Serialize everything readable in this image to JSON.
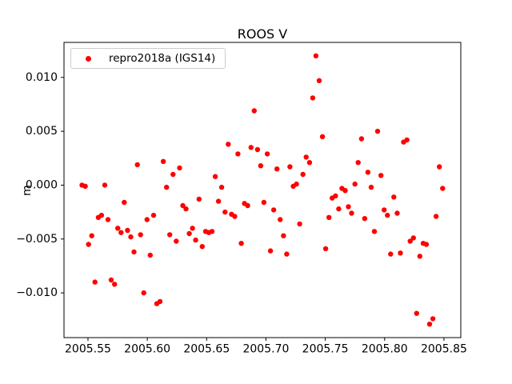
{
  "chart_data": {
    "type": "scatter",
    "title": "ROOS V",
    "xlabel": "",
    "ylabel": "m",
    "grid": false,
    "xlim": [
      2005.5298,
      2005.8642
    ],
    "ylim": [
      -0.01415,
      0.01325
    ],
    "xticks": {
      "values": [
        2005.55,
        2005.6,
        2005.65,
        2005.7,
        2005.75,
        2005.8,
        2005.85
      ],
      "labels": [
        "2005.55",
        "2005.60",
        "2005.65",
        "2005.70",
        "2005.75",
        "2005.80",
        "2005.85"
      ]
    },
    "yticks": {
      "values": [
        -0.01,
        -0.005,
        0.0,
        0.005,
        0.01
      ],
      "labels": [
        "−0.010",
        "−0.005",
        "0.000",
        "0.005",
        "0.010"
      ]
    },
    "legend": {
      "position": "upper left",
      "entries": [
        {
          "label": "repro2018a (IGS14)",
          "color": "#ff0000",
          "marker": "circle"
        }
      ]
    },
    "series": [
      {
        "name": "repro2018a (IGS14)",
        "color": "#ff0000",
        "marker": "o",
        "points": [
          [
            2005.545,
            0.0
          ],
          [
            2005.5477,
            -0.0001
          ],
          [
            2005.5505,
            -0.0055
          ],
          [
            2005.5532,
            -0.0047
          ],
          [
            2005.5559,
            -0.009
          ],
          [
            2005.5587,
            -0.003
          ],
          [
            2005.5614,
            -0.0028
          ],
          [
            2005.5642,
            0.0
          ],
          [
            2005.5669,
            -0.0032
          ],
          [
            2005.5696,
            -0.0088
          ],
          [
            2005.5724,
            -0.0092
          ],
          [
            2005.5751,
            -0.004
          ],
          [
            2005.5779,
            -0.0044
          ],
          [
            2005.5806,
            -0.0016
          ],
          [
            2005.5833,
            -0.0042
          ],
          [
            2005.5861,
            -0.0048
          ],
          [
            2005.5888,
            -0.0062
          ],
          [
            2005.5916,
            0.0019
          ],
          [
            2005.5943,
            -0.0046
          ],
          [
            2005.597,
            -0.01
          ],
          [
            2005.5998,
            -0.0032
          ],
          [
            2005.6025,
            -0.0065
          ],
          [
            2005.6053,
            -0.0028
          ],
          [
            2005.608,
            -0.011
          ],
          [
            2005.6107,
            -0.0108
          ],
          [
            2005.6135,
            0.0022
          ],
          [
            2005.6162,
            -0.0002
          ],
          [
            2005.6189,
            -0.0046
          ],
          [
            2005.6217,
            0.001
          ],
          [
            2005.6244,
            -0.0052
          ],
          [
            2005.6272,
            0.0016
          ],
          [
            2005.6299,
            -0.0019
          ],
          [
            2005.6326,
            -0.0022
          ],
          [
            2005.6354,
            -0.0045
          ],
          [
            2005.6381,
            -0.004
          ],
          [
            2005.6408,
            -0.0051
          ],
          [
            2005.6436,
            -0.0013
          ],
          [
            2005.6463,
            -0.0057
          ],
          [
            2005.6491,
            -0.0043
          ],
          [
            2005.6518,
            -0.0044
          ],
          [
            2005.6545,
            -0.0043
          ],
          [
            2005.6573,
            0.0008
          ],
          [
            2005.66,
            -0.0015
          ],
          [
            2005.6627,
            -0.0002
          ],
          [
            2005.6655,
            -0.0025
          ],
          [
            2005.6682,
            0.0038
          ],
          [
            2005.671,
            -0.0027
          ],
          [
            2005.6737,
            -0.0029
          ],
          [
            2005.6764,
            0.0029
          ],
          [
            2005.6792,
            -0.0054
          ],
          [
            2005.6819,
            -0.0017
          ],
          [
            2005.6846,
            -0.0019
          ],
          [
            2005.6874,
            0.0035
          ],
          [
            2005.6901,
            0.0069
          ],
          [
            2005.6929,
            0.0033
          ],
          [
            2005.6956,
            0.0018
          ],
          [
            2005.6983,
            -0.0016
          ],
          [
            2005.7011,
            0.0029
          ],
          [
            2005.7038,
            -0.0061
          ],
          [
            2005.7065,
            -0.0023
          ],
          [
            2005.7093,
            0.0015
          ],
          [
            2005.712,
            -0.0032
          ],
          [
            2005.7148,
            -0.0047
          ],
          [
            2005.7175,
            -0.0064
          ],
          [
            2005.7202,
            0.0017
          ],
          [
            2005.723,
            -0.0001
          ],
          [
            2005.7257,
            0.0001
          ],
          [
            2005.7284,
            -0.0036
          ],
          [
            2005.7312,
            0.001
          ],
          [
            2005.7339,
            0.0026
          ],
          [
            2005.7367,
            0.0021
          ],
          [
            2005.7394,
            0.0081
          ],
          [
            2005.7421,
            0.012
          ],
          [
            2005.7449,
            0.0097
          ],
          [
            2005.7476,
            0.0045
          ],
          [
            2005.7503,
            -0.0059
          ],
          [
            2005.7531,
            -0.003
          ],
          [
            2005.7558,
            -0.0012
          ],
          [
            2005.7586,
            -0.001
          ],
          [
            2005.7613,
            -0.0022
          ],
          [
            2005.764,
            -0.0003
          ],
          [
            2005.7668,
            -0.0005
          ],
          [
            2005.7695,
            -0.002
          ],
          [
            2005.7722,
            -0.0026
          ],
          [
            2005.775,
            0.0001
          ],
          [
            2005.7777,
            0.0021
          ],
          [
            2005.7805,
            0.0043
          ],
          [
            2005.7832,
            -0.0031
          ],
          [
            2005.7859,
            0.0012
          ],
          [
            2005.7887,
            -0.0002
          ],
          [
            2005.7914,
            -0.0043
          ],
          [
            2005.7941,
            0.005
          ],
          [
            2005.7969,
            0.0009
          ],
          [
            2005.7996,
            -0.0023
          ],
          [
            2005.8024,
            -0.0028
          ],
          [
            2005.8051,
            -0.0064
          ],
          [
            2005.8078,
            -0.0011
          ],
          [
            2005.8106,
            -0.0026
          ],
          [
            2005.8133,
            -0.0063
          ],
          [
            2005.816,
            0.004
          ],
          [
            2005.8188,
            0.0042
          ],
          [
            2005.8215,
            -0.0052
          ],
          [
            2005.8243,
            -0.0049
          ],
          [
            2005.827,
            -0.0119
          ],
          [
            2005.8297,
            -0.0066
          ],
          [
            2005.8325,
            -0.0054
          ],
          [
            2005.8352,
            -0.0055
          ],
          [
            2005.8379,
            -0.0129
          ],
          [
            2005.8407,
            -0.0124
          ],
          [
            2005.8434,
            -0.0029
          ],
          [
            2005.8461,
            0.0017
          ],
          [
            2005.8489,
            -0.0003
          ]
        ]
      }
    ]
  }
}
